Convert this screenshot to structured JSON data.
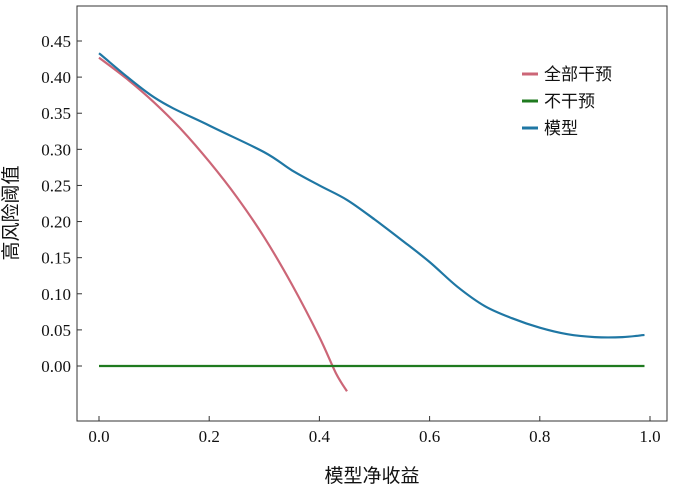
{
  "chart_data": {
    "type": "line",
    "xlabel": "模型净收益",
    "ylabel": "高风险阈值",
    "xlim": [
      0.0,
      1.0
    ],
    "ylim": [
      -0.04,
      0.46
    ],
    "xticks": [
      "0.0",
      "0.2",
      "0.4",
      "0.6",
      "0.8",
      "1.0"
    ],
    "yticks": [
      "0.00",
      "0.05",
      "0.10",
      "0.15",
      "0.20",
      "0.25",
      "0.30",
      "0.35",
      "0.40",
      "0.45"
    ],
    "grid": false,
    "legend_position": "top-right",
    "series": [
      {
        "name": "全部干预",
        "color": "#cc6677",
        "x": [
          0.0,
          0.05,
          0.1,
          0.15,
          0.2,
          0.25,
          0.3,
          0.35,
          0.4,
          0.43,
          0.45
        ],
        "y": [
          0.427,
          0.398,
          0.365,
          0.327,
          0.283,
          0.234,
          0.178,
          0.113,
          0.04,
          -0.01,
          -0.035
        ]
      },
      {
        "name": "不干预",
        "color": "#1f7a1f",
        "x": [
          0.0,
          0.2,
          0.4,
          0.6,
          0.8,
          0.99
        ],
        "y": [
          0.0,
          0.0,
          0.0,
          0.0,
          0.0,
          0.0
        ]
      },
      {
        "name": "模型",
        "color": "#1f77a4",
        "x": [
          0.0,
          0.1,
          0.2,
          0.3,
          0.35,
          0.4,
          0.45,
          0.5,
          0.55,
          0.6,
          0.65,
          0.7,
          0.75,
          0.8,
          0.85,
          0.9,
          0.95,
          0.99
        ],
        "y": [
          0.433,
          0.372,
          0.333,
          0.296,
          0.271,
          0.25,
          0.23,
          0.203,
          0.174,
          0.144,
          0.11,
          0.083,
          0.066,
          0.053,
          0.044,
          0.04,
          0.04,
          0.043
        ]
      }
    ]
  }
}
